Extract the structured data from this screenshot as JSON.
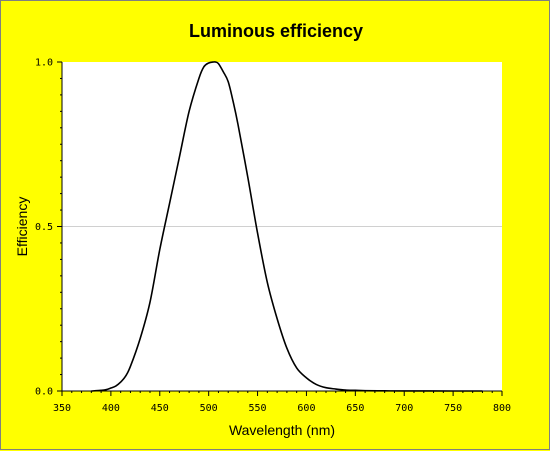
{
  "chart_data": {
    "type": "line",
    "title": "Luminous efficiency",
    "xlabel": "Wavelength (nm)",
    "ylabel": "Efficiency",
    "xlim": [
      350,
      800
    ],
    "ylim": [
      0.0,
      1.0
    ],
    "x_ticks": [
      350,
      400,
      450,
      500,
      550,
      600,
      650,
      700,
      750,
      800
    ],
    "y_ticks": [
      0.0,
      0.5,
      1.0
    ],
    "y_tick_labels": [
      "0.0",
      "0.5",
      "1.0"
    ],
    "grid": "horizontal at 0.5",
    "legend": "none",
    "colors": {
      "background": "#ffff00",
      "plot_area": "#ffffff",
      "line": "#000000",
      "grid": "#d0d0d0"
    },
    "series": [
      {
        "x": [
          380,
          390,
          395,
          400,
          405,
          410,
          415,
          420,
          430,
          440,
          450,
          460,
          470,
          480,
          490,
          495,
          500,
          505,
          507,
          510,
          515,
          520,
          525,
          530,
          540,
          550,
          560,
          570,
          580,
          590,
          600,
          610,
          620,
          630,
          640,
          650,
          660,
          680,
          700,
          750,
          780
        ],
        "values": [
          0.0,
          0.002,
          0.004,
          0.009,
          0.015,
          0.027,
          0.045,
          0.075,
          0.16,
          0.27,
          0.43,
          0.57,
          0.71,
          0.85,
          0.95,
          0.985,
          0.997,
          1.0,
          1.0,
          0.995,
          0.97,
          0.94,
          0.88,
          0.81,
          0.65,
          0.48,
          0.33,
          0.22,
          0.13,
          0.07,
          0.04,
          0.02,
          0.01,
          0.006,
          0.003,
          0.002,
          0.001,
          0.0005,
          0.0002,
          0.0,
          0.0
        ]
      }
    ]
  }
}
